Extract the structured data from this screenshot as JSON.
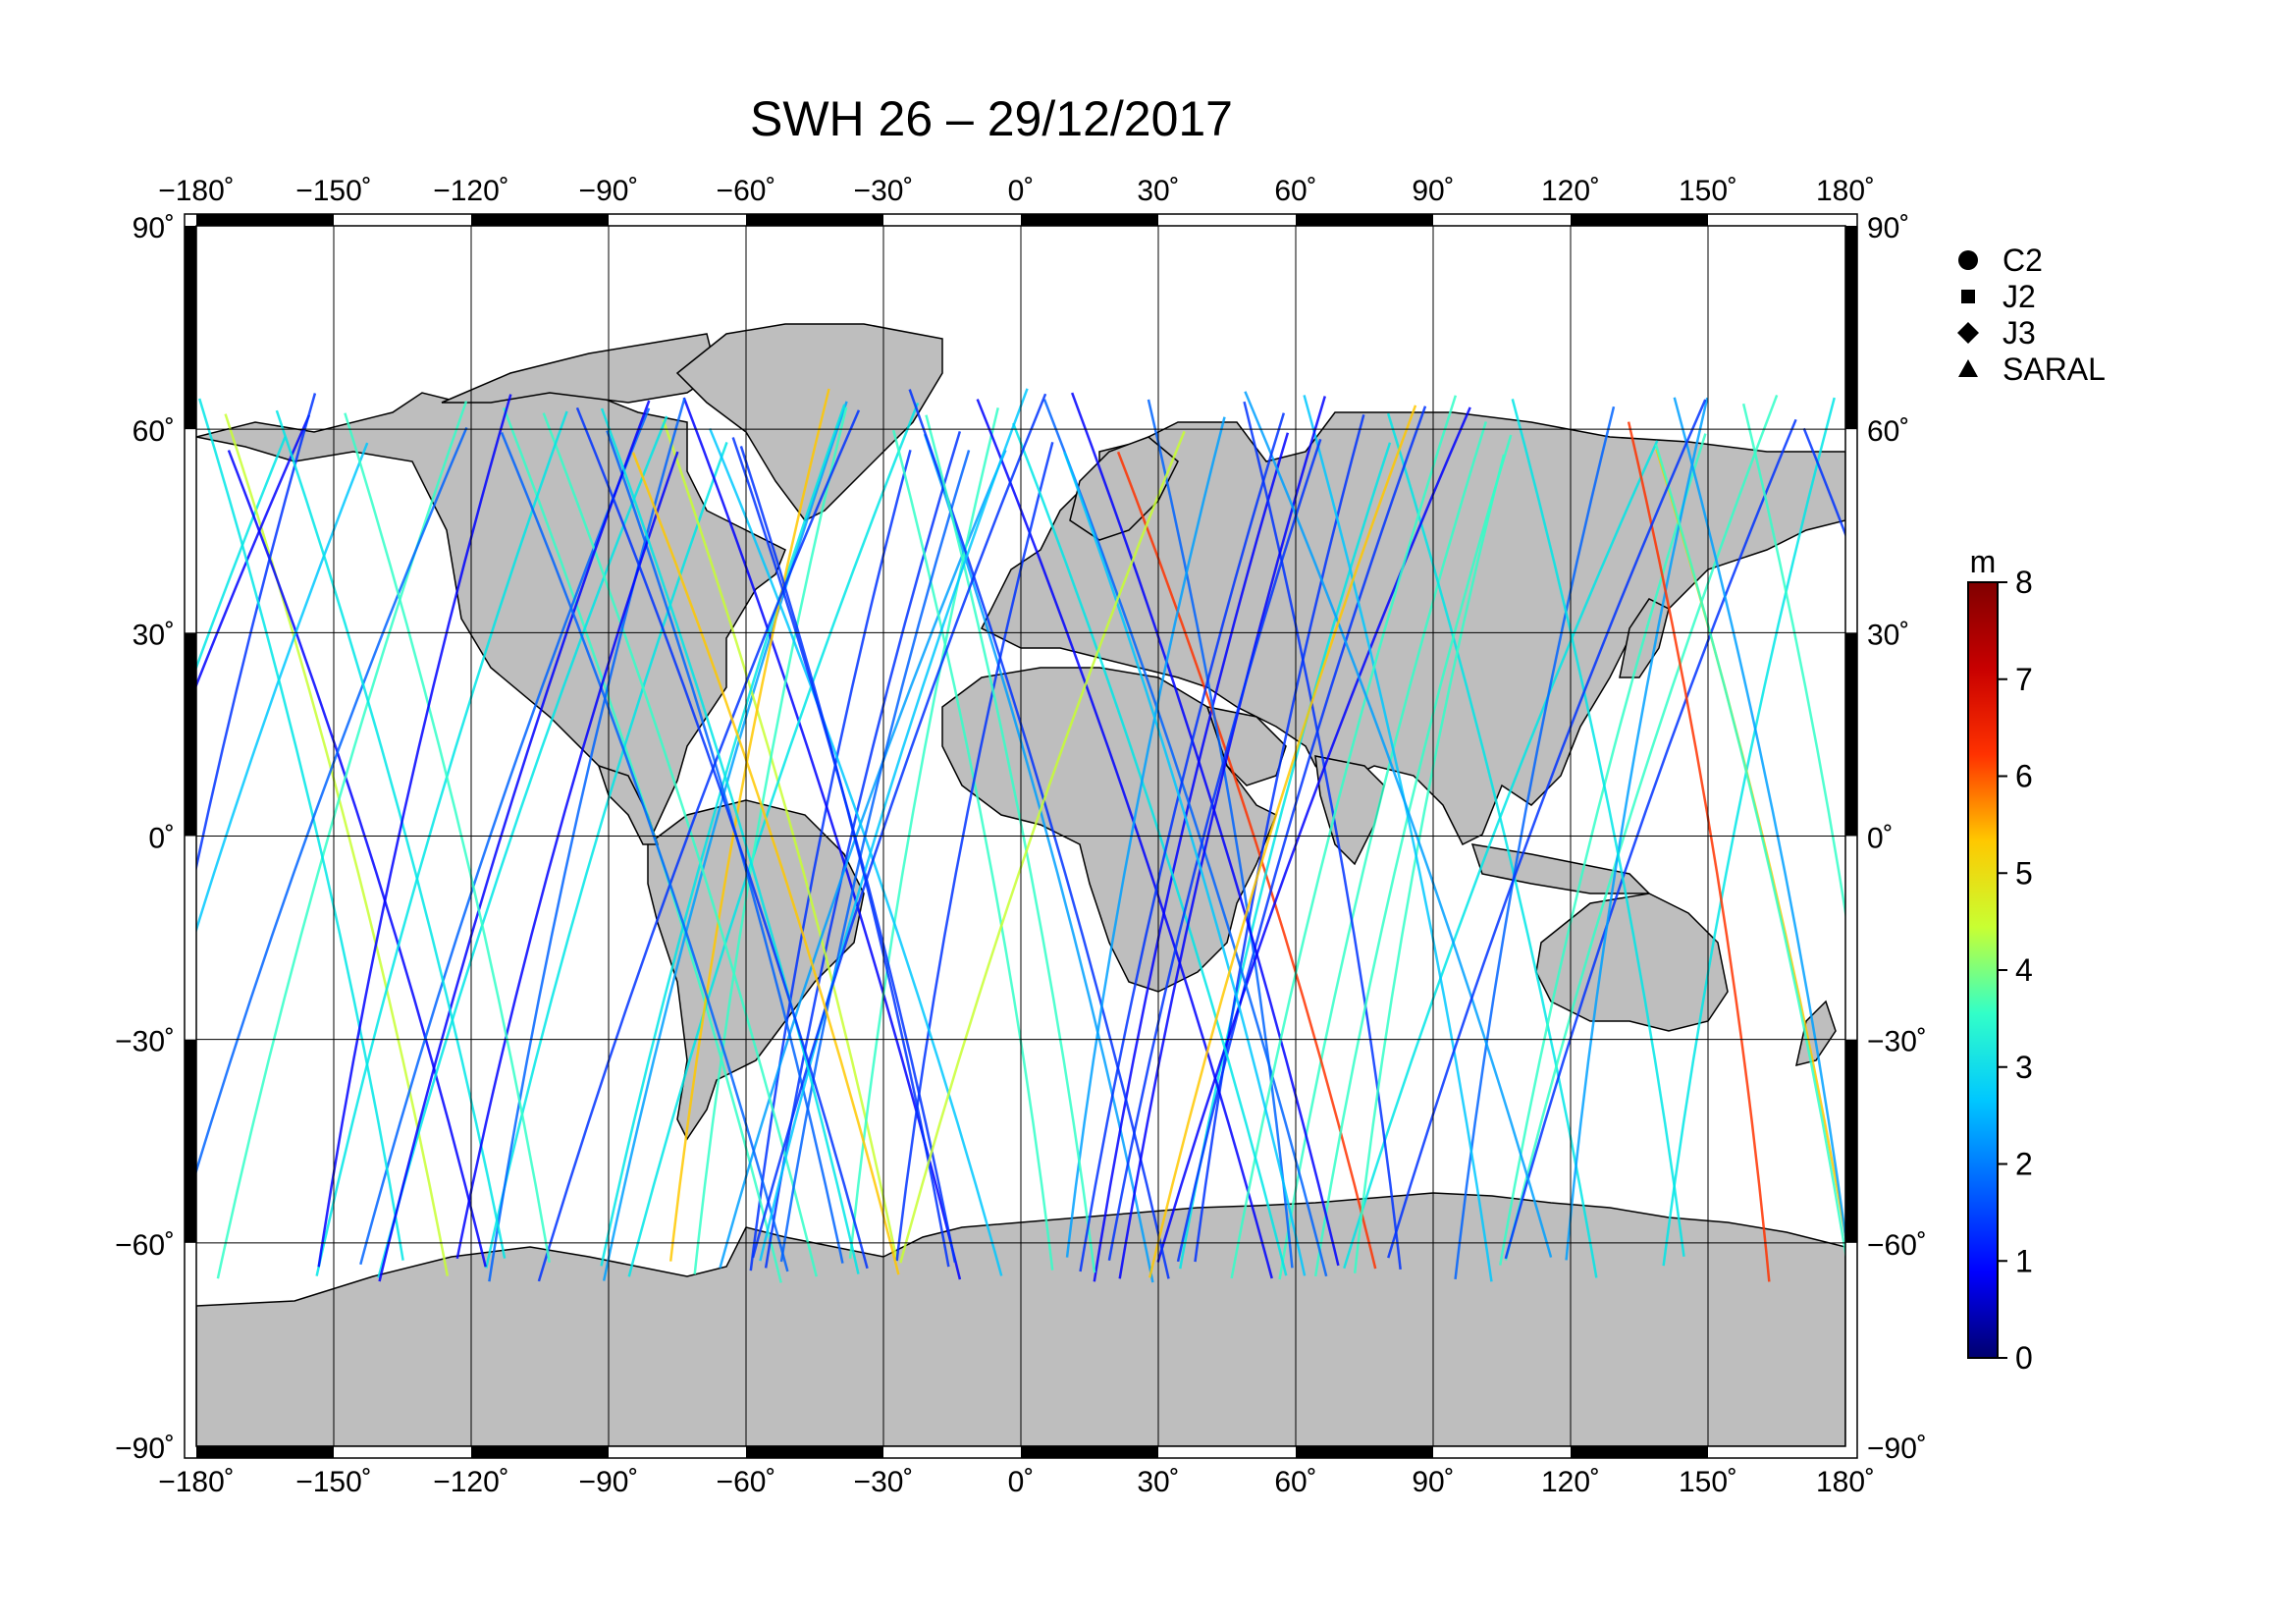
{
  "title": "SWH 26 – 29/12/2017",
  "axes": {
    "lon_ticks": [
      "−180˚",
      "−150˚",
      "−120˚",
      "−90˚",
      "−60˚",
      "−30˚",
      "0˚",
      "30˚",
      "60˚",
      "90˚",
      "120˚",
      "150˚",
      "180˚"
    ],
    "lat_ticks": [
      "90˚",
      "60˚",
      "30˚",
      "0˚",
      "−30˚",
      "−60˚",
      "−90˚"
    ],
    "lon_range": [
      -180,
      180
    ],
    "lat_range": [
      -90,
      90
    ],
    "grid": true
  },
  "legend": {
    "placement": "top-right",
    "items": [
      {
        "marker": "circle",
        "label": "C2"
      },
      {
        "marker": "square",
        "label": "J2"
      },
      {
        "marker": "diamond",
        "label": "J3"
      },
      {
        "marker": "triangle",
        "label": "SARAL"
      }
    ]
  },
  "colorbar": {
    "unit": "m",
    "min": 0,
    "max": 8,
    "ticks": [
      "0",
      "1",
      "2",
      "3",
      "4",
      "5",
      "6",
      "7",
      "8"
    ],
    "colors": [
      "#00006e",
      "#0000ff",
      "#0064ff",
      "#00c8ff",
      "#32ffc8",
      "#c8ff32",
      "#ffc800",
      "#ff3200",
      "#c80000",
      "#800000"
    ]
  },
  "map": {
    "land_color": "#bebebe",
    "ocean_color": "#ffffff",
    "coast_color": "#000000"
  }
}
